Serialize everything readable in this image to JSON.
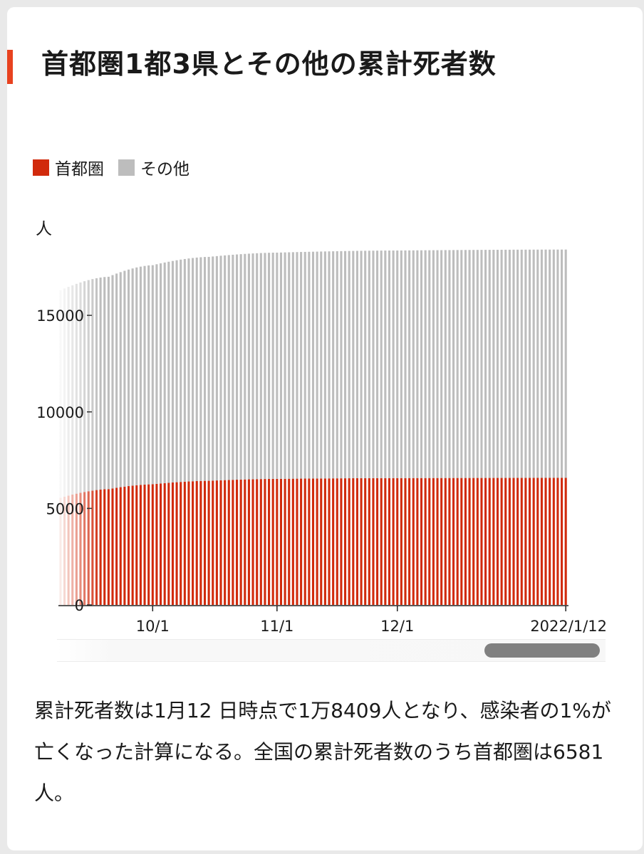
{
  "title": "首都圏1都3県とその他の累計死者数",
  "legend": [
    {
      "label": "首都圏",
      "color": "#d12a0c"
    },
    {
      "label": "その他",
      "color": "#bdbdbd"
    }
  ],
  "unit_label": "人",
  "description": "累計死者数は1月12 日時点で1万8409人となり、感染者の1%が亡くなった計算になる。全国の累計死者数のうち首都圏は6581人。",
  "chart_data": {
    "type": "bar",
    "stacked": true,
    "x_axis": {
      "start": "2021-09-08",
      "end": "2022-01-12",
      "tick_labels": [
        "10/1",
        "11/1",
        "12/1",
        "2022/1/12"
      ],
      "tick_dates": [
        "2021-10-01",
        "2021-11-01",
        "2021-12-01",
        "2022-01-12"
      ]
    },
    "y_axis": {
      "ticks": [
        0,
        5000,
        10000,
        15000
      ],
      "ylim": [
        0,
        18500
      ]
    },
    "ylabel": "人",
    "legend_position": "top-left",
    "series": [
      {
        "name": "首都圏",
        "color": "#d12a0c",
        "anchors": [
          {
            "date": "2021-09-08",
            "value": 5550
          },
          {
            "date": "2021-09-20",
            "value": 6000
          },
          {
            "date": "2021-10-01",
            "value": 6250
          },
          {
            "date": "2021-10-15",
            "value": 6430
          },
          {
            "date": "2021-11-01",
            "value": 6530
          },
          {
            "date": "2021-12-01",
            "value": 6570
          },
          {
            "date": "2022-01-12",
            "value": 6581
          }
        ]
      },
      {
        "name": "その他",
        "color": "#bdbdbd",
        "anchors": [
          {
            "date": "2021-09-08",
            "value": 10750
          },
          {
            "date": "2021-09-20",
            "value": 11000
          },
          {
            "date": "2021-10-01",
            "value": 11350
          },
          {
            "date": "2021-10-15",
            "value": 11600
          },
          {
            "date": "2021-11-01",
            "value": 11720
          },
          {
            "date": "2021-12-01",
            "value": 11790
          },
          {
            "date": "2022-01-12",
            "value": 11828
          }
        ]
      }
    ]
  }
}
